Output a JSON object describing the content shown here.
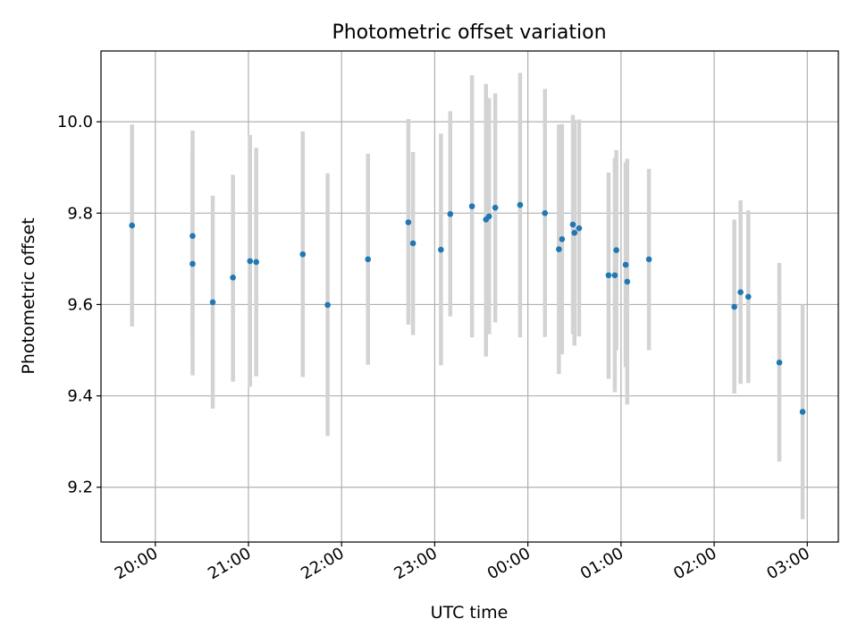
{
  "chart_data": {
    "type": "scatter",
    "title": "Photometric offset variation",
    "xlabel": "UTC time",
    "ylabel": "Photometric offset",
    "x_is_time": true,
    "xlim": [
      "19:25",
      "03:20"
    ],
    "ylim": [
      9.08,
      10.155
    ],
    "xticks": [
      "20:00",
      "21:00",
      "22:00",
      "23:00",
      "00:00",
      "01:00",
      "02:00",
      "03:00"
    ],
    "yticks": [
      "9.2",
      "9.4",
      "9.6",
      "9.8",
      "10.0"
    ],
    "grid": true,
    "marker_color": "#1f77b4",
    "errorbar_color": "#d3d3d3",
    "series": [
      {
        "points": [
          {
            "t": "19:45",
            "y": 9.773,
            "lo": 9.552,
            "hi": 9.994
          },
          {
            "t": "20:24",
            "y": 9.75,
            "lo": 9.52,
            "hi": 9.981
          },
          {
            "t": "20:24",
            "y": 9.689,
            "lo": 9.445,
            "hi": 9.935
          },
          {
            "t": "20:37",
            "y": 9.605,
            "lo": 9.372,
            "hi": 9.838
          },
          {
            "t": "20:50",
            "y": 9.659,
            "lo": 9.431,
            "hi": 9.884
          },
          {
            "t": "21:01",
            "y": 9.695,
            "lo": 9.42,
            "hi": 9.971
          },
          {
            "t": "21:05",
            "y": 9.693,
            "lo": 9.443,
            "hi": 9.943
          },
          {
            "t": "21:35",
            "y": 9.71,
            "lo": 9.441,
            "hi": 9.979
          },
          {
            "t": "21:51",
            "y": 9.599,
            "lo": 9.312,
            "hi": 9.887
          },
          {
            "t": "22:17",
            "y": 9.699,
            "lo": 9.468,
            "hi": 9.93
          },
          {
            "t": "22:43",
            "y": 9.78,
            "lo": 9.556,
            "hi": 10.006
          },
          {
            "t": "22:46",
            "y": 9.734,
            "lo": 9.533,
            "hi": 9.934
          },
          {
            "t": "23:04",
            "y": 9.72,
            "lo": 9.467,
            "hi": 9.974
          },
          {
            "t": "23:10",
            "y": 9.798,
            "lo": 9.574,
            "hi": 10.023
          },
          {
            "t": "23:24",
            "y": 9.815,
            "lo": 9.528,
            "hi": 10.102
          },
          {
            "t": "23:33",
            "y": 9.786,
            "lo": 9.486,
            "hi": 10.083
          },
          {
            "t": "23:35",
            "y": 9.793,
            "lo": 9.535,
            "hi": 10.052
          },
          {
            "t": "23:39",
            "y": 9.812,
            "lo": 9.561,
            "hi": 10.062
          },
          {
            "t": "23:55",
            "y": 9.818,
            "lo": 9.528,
            "hi": 10.107
          },
          {
            "t": "00:11",
            "y": 9.8,
            "lo": 9.529,
            "hi": 10.072
          },
          {
            "t": "00:20",
            "y": 9.721,
            "lo": 9.448,
            "hi": 9.994
          },
          {
            "t": "00:22",
            "y": 9.743,
            "lo": 9.491,
            "hi": 9.995
          },
          {
            "t": "00:29",
            "y": 9.775,
            "lo": 9.535,
            "hi": 10.015
          },
          {
            "t": "00:30",
            "y": 9.757,
            "lo": 9.51,
            "hi": 10.004
          },
          {
            "t": "00:33",
            "y": 9.767,
            "lo": 9.53,
            "hi": 10.005
          },
          {
            "t": "00:52",
            "y": 9.664,
            "lo": 9.437,
            "hi": 9.889
          },
          {
            "t": "00:56",
            "y": 9.664,
            "lo": 9.408,
            "hi": 9.921
          },
          {
            "t": "00:57",
            "y": 9.719,
            "lo": 9.5,
            "hi": 9.938
          },
          {
            "t": "01:03",
            "y": 9.687,
            "lo": 9.463,
            "hi": 9.911
          },
          {
            "t": "01:04",
            "y": 9.65,
            "lo": 9.381,
            "hi": 9.919
          },
          {
            "t": "01:18",
            "y": 9.699,
            "lo": 9.5,
            "hi": 9.897
          },
          {
            "t": "02:13",
            "y": 9.595,
            "lo": 9.405,
            "hi": 9.786
          },
          {
            "t": "02:17",
            "y": 9.627,
            "lo": 9.426,
            "hi": 9.828
          },
          {
            "t": "02:22",
            "y": 9.617,
            "lo": 9.428,
            "hi": 9.806
          },
          {
            "t": "02:42",
            "y": 9.473,
            "lo": 9.256,
            "hi": 9.691
          },
          {
            "t": "02:57",
            "y": 9.365,
            "lo": 9.13,
            "hi": 9.6
          }
        ]
      }
    ]
  }
}
